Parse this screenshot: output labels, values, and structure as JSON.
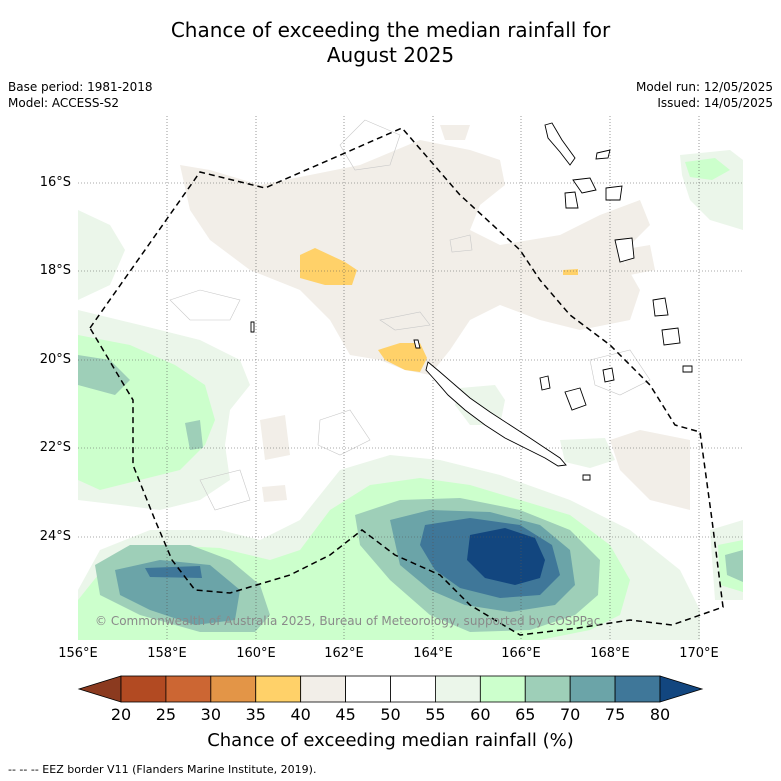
{
  "title": {
    "line1": "Chance of exceeding the median rainfall for",
    "line2": "August 2025"
  },
  "meta": {
    "base_period": "Base period: 1981-2018",
    "model": "Model: ACCESS-S2",
    "model_run": "Model run: 12/05/2025",
    "issued": "Issued: 14/05/2025"
  },
  "map": {
    "lat_labels": [
      "16°S",
      "18°S",
      "20°S",
      "22°S",
      "24°S"
    ],
    "lon_labels": [
      "156°E",
      "158°E",
      "160°E",
      "162°E",
      "164°E",
      "166°E",
      "168°E",
      "170°E"
    ],
    "copyright": "© Commonwealth of Australia 2025, Bureau of Meteorology, supported by COSPPac",
    "highlight": "New Caledonia EEZ region"
  },
  "colorbar": {
    "ticks": [
      "20",
      "25",
      "30",
      "35",
      "40",
      "45",
      "50",
      "55",
      "60",
      "65",
      "70",
      "75",
      "80"
    ],
    "colors": [
      "#8b3a1f",
      "#b24a22",
      "#cc6633",
      "#e39547",
      "#ffd169",
      "#f2eee8",
      "#ffffff",
      "#ffffff",
      "#ebf6ea",
      "#ccffcc",
      "#9ecfb8",
      "#6ba4a8",
      "#3f7799",
      "#12467f"
    ],
    "title": "Chance of exceeding median rainfall (%)"
  },
  "legend": {
    "eez_note": "--  --  -- EEZ border V11 (Flanders Marine Institute, 2019)."
  }
}
